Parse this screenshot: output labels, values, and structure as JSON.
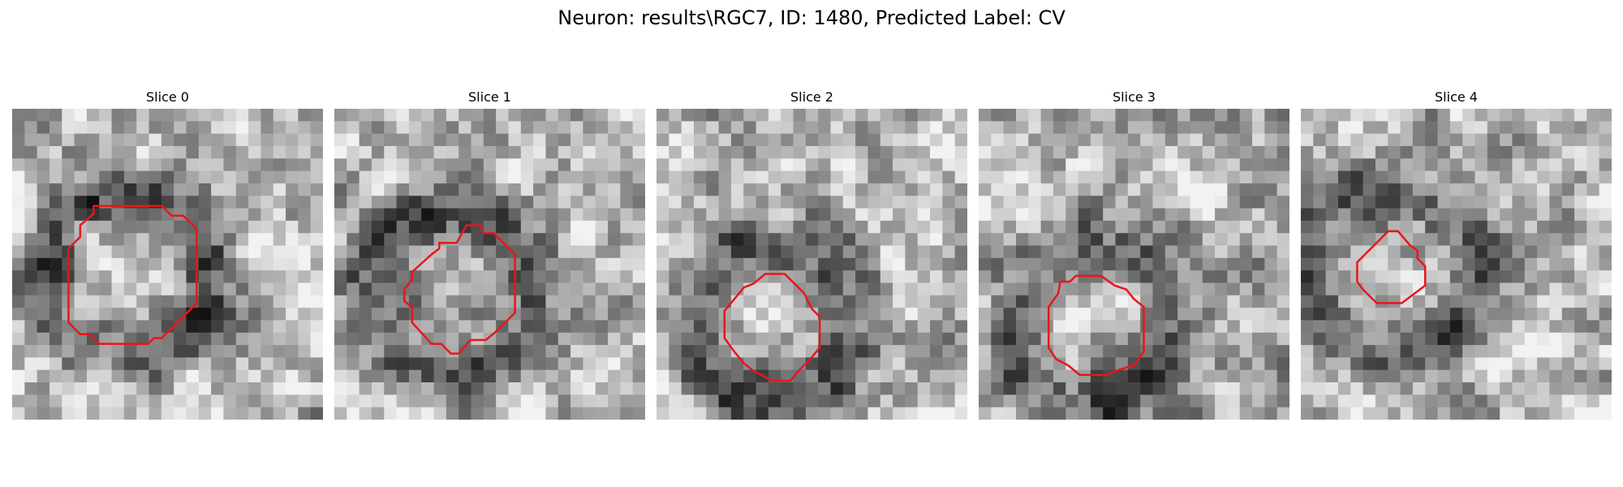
{
  "figure": {
    "title": "Neuron: results\\RGC7, ID: 1480, Predicted Label: CV"
  },
  "contour_color": "#e8161c",
  "panels": [
    {
      "title": "Slice 0",
      "contour": [
        [
          4.2,
          5.0
        ],
        [
          7.7,
          5.0
        ],
        [
          8.2,
          5.5
        ],
        [
          8.8,
          5.5
        ],
        [
          9.5,
          6.2
        ],
        [
          9.5,
          10.0
        ],
        [
          8.2,
          11.3
        ],
        [
          7.7,
          11.8
        ],
        [
          7.3,
          11.8
        ],
        [
          7.0,
          12.1
        ],
        [
          4.5,
          12.1
        ],
        [
          4.0,
          11.6
        ],
        [
          3.5,
          11.6
        ],
        [
          2.9,
          11.0
        ],
        [
          2.9,
          7.2
        ],
        [
          3.5,
          6.6
        ],
        [
          3.5,
          6.0
        ],
        [
          4.2,
          5.4
        ]
      ],
      "seed": 11
    },
    {
      "title": "Slice 1",
      "contour": [
        [
          6.8,
          6.0
        ],
        [
          7.5,
          6.0
        ],
        [
          7.7,
          6.4
        ],
        [
          8.2,
          6.4
        ],
        [
          9.3,
          7.5
        ],
        [
          9.3,
          10.5
        ],
        [
          8.4,
          11.4
        ],
        [
          7.8,
          11.9
        ],
        [
          7.0,
          11.9
        ],
        [
          6.4,
          12.6
        ],
        [
          6.0,
          12.6
        ],
        [
          5.5,
          12.1
        ],
        [
          5.0,
          12.1
        ],
        [
          4.0,
          11.0
        ],
        [
          4.0,
          10.2
        ],
        [
          3.6,
          9.9
        ],
        [
          3.6,
          9.3
        ],
        [
          4.0,
          8.8
        ],
        [
          4.0,
          8.4
        ],
        [
          5.0,
          7.5
        ],
        [
          5.4,
          7.2
        ],
        [
          5.4,
          6.9
        ],
        [
          6.3,
          6.9
        ]
      ],
      "seed": 23
    },
    {
      "title": "Slice 2",
      "contour": [
        [
          5.0,
          9.0
        ],
        [
          5.6,
          8.5
        ],
        [
          6.6,
          8.5
        ],
        [
          7.0,
          8.9
        ],
        [
          7.6,
          9.5
        ],
        [
          8.0,
          10.3
        ],
        [
          8.4,
          10.7
        ],
        [
          8.4,
          12.3
        ],
        [
          7.9,
          12.9
        ],
        [
          7.3,
          13.5
        ],
        [
          6.9,
          14.0
        ],
        [
          6.0,
          14.0
        ],
        [
          5.0,
          13.5
        ],
        [
          4.5,
          13.1
        ],
        [
          4.0,
          12.5
        ],
        [
          3.5,
          11.8
        ],
        [
          3.5,
          10.4
        ],
        [
          4.0,
          9.8
        ],
        [
          4.5,
          9.2
        ]
      ],
      "seed": 37
    },
    {
      "title": "Slice 3",
      "contour": [
        [
          4.2,
          8.9
        ],
        [
          4.7,
          8.9
        ],
        [
          5.0,
          8.6
        ],
        [
          6.3,
          8.6
        ],
        [
          7.0,
          9.1
        ],
        [
          7.6,
          9.3
        ],
        [
          8.0,
          9.8
        ],
        [
          8.5,
          10.2
        ],
        [
          8.5,
          12.5
        ],
        [
          8.0,
          13.2
        ],
        [
          7.0,
          13.5
        ],
        [
          6.6,
          13.7
        ],
        [
          5.2,
          13.7
        ],
        [
          4.6,
          13.2
        ],
        [
          4.0,
          12.9
        ],
        [
          3.6,
          12.3
        ],
        [
          3.6,
          10.2
        ],
        [
          4.1,
          9.5
        ]
      ],
      "seed": 53
    },
    {
      "title": "Slice 4",
      "contour": [
        [
          3.8,
          7.0
        ],
        [
          4.5,
          6.3
        ],
        [
          5.0,
          6.3
        ],
        [
          5.6,
          7.0
        ],
        [
          6.0,
          7.3
        ],
        [
          6.0,
          7.7
        ],
        [
          6.4,
          8.1
        ],
        [
          6.4,
          9.1
        ],
        [
          6.0,
          9.4
        ],
        [
          5.2,
          10.0
        ],
        [
          3.9,
          10.0
        ],
        [
          3.2,
          9.3
        ],
        [
          2.9,
          8.9
        ],
        [
          2.9,
          7.9
        ],
        [
          3.4,
          7.4
        ]
      ],
      "seed": 71
    }
  ]
}
